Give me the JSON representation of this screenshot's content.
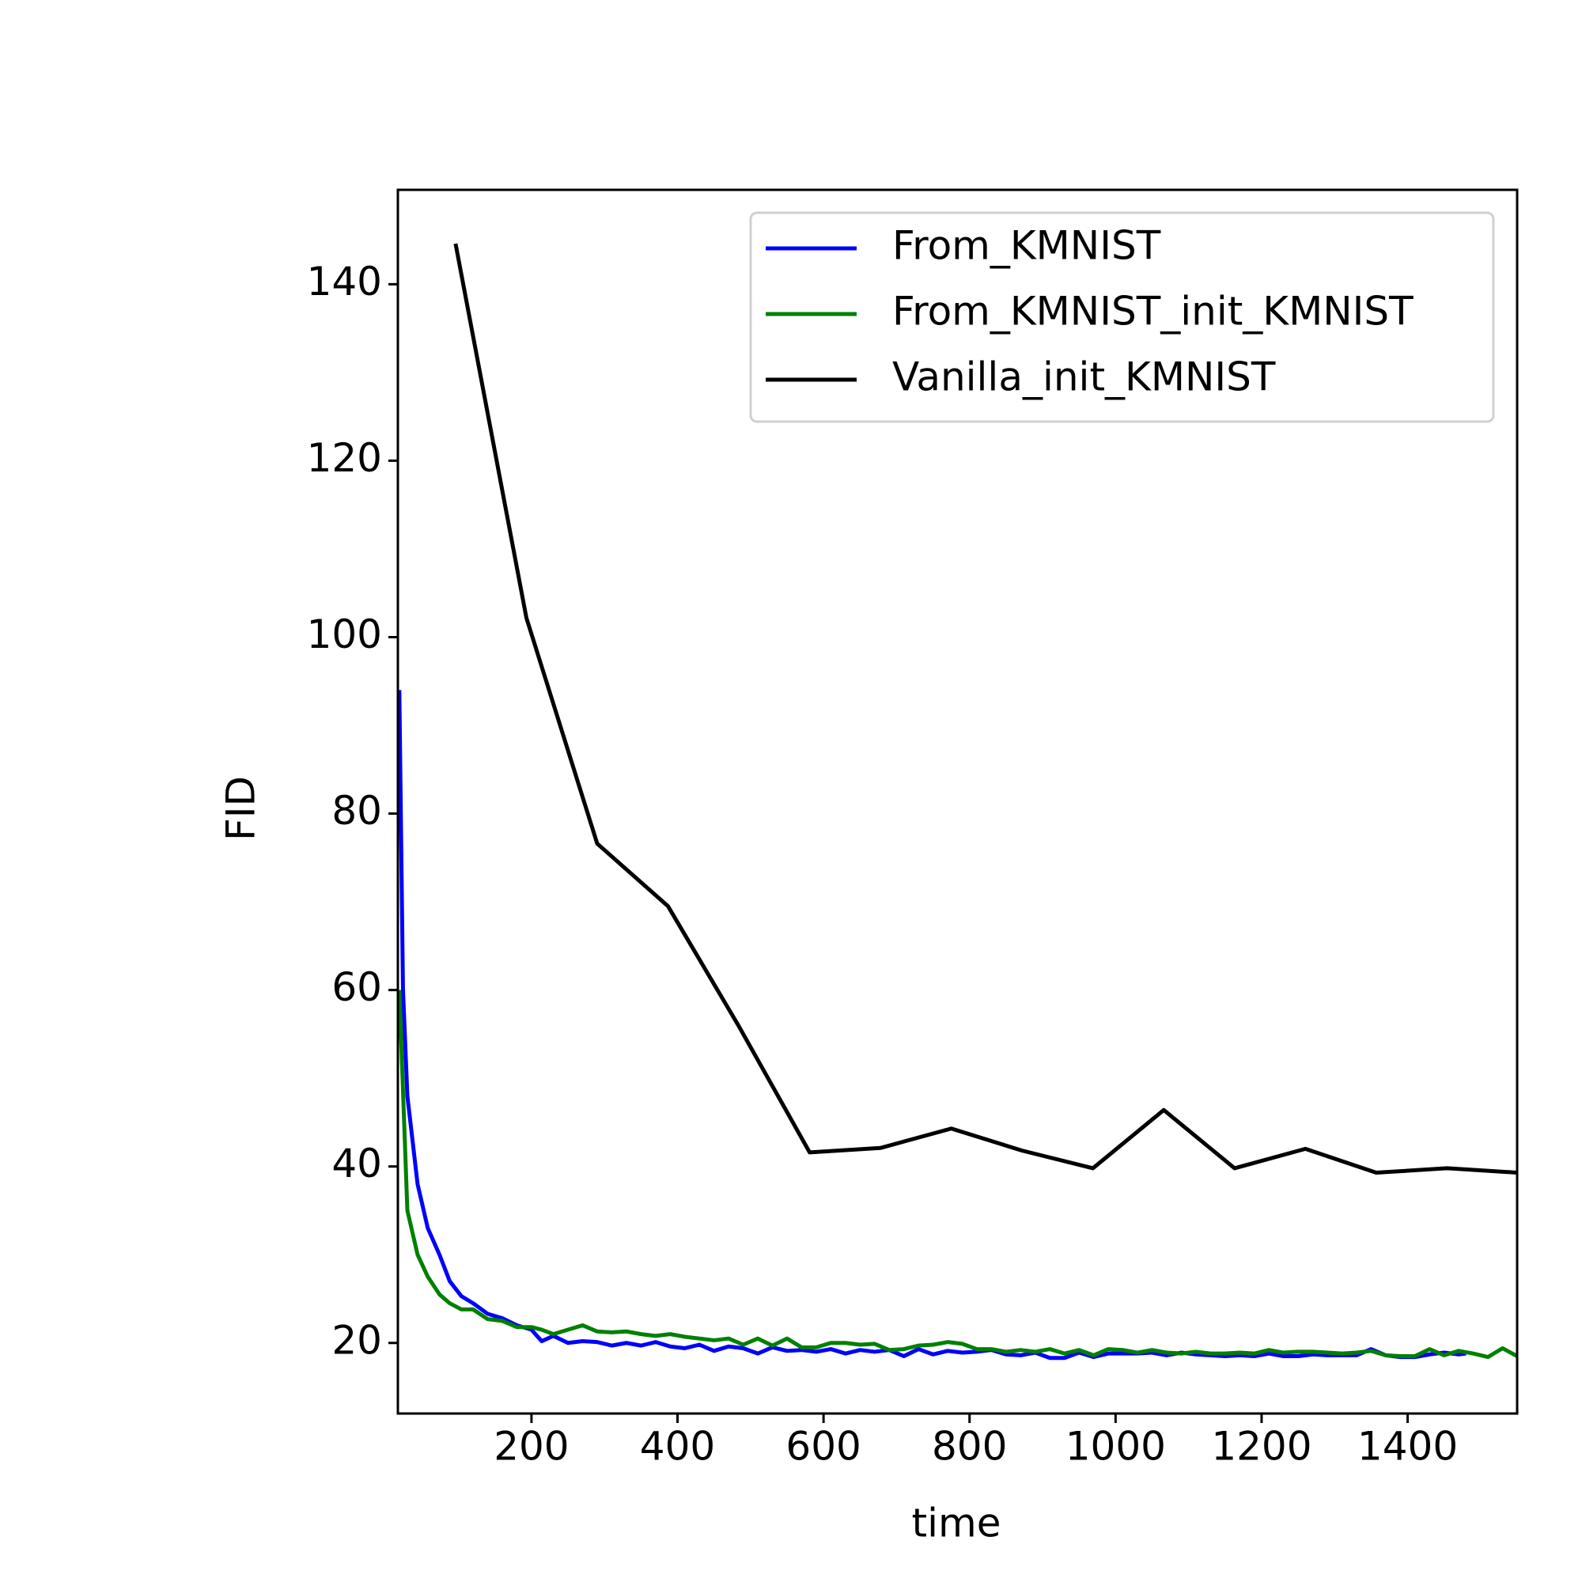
{
  "chart_data": {
    "type": "line",
    "xlabel": "time",
    "ylabel": "FID",
    "xlim": [
      17,
      1550
    ],
    "ylim": [
      12,
      150.7
    ],
    "xticks": [
      200,
      400,
      600,
      800,
      1000,
      1200,
      1400
    ],
    "yticks": [
      20,
      40,
      60,
      80,
      100,
      120,
      140
    ],
    "legend": "upper right",
    "grid": false,
    "series": [
      {
        "name": "From_KMNIST",
        "color": "#0000ff",
        "x": [
          19,
          24,
          30,
          44,
          58,
          74,
          88,
          104,
          120,
          140,
          160,
          180,
          200,
          214,
          230,
          250,
          270,
          290,
          310,
          330,
          350,
          370,
          390,
          410,
          430,
          450,
          470,
          490,
          510,
          530,
          550,
          570,
          590,
          610,
          630,
          650,
          670,
          690,
          710,
          730,
          750,
          770,
          790,
          810,
          830,
          850,
          870,
          890,
          910,
          930,
          950,
          970,
          990,
          1010,
          1030,
          1050,
          1070,
          1090,
          1110,
          1130,
          1150,
          1170,
          1190,
          1210,
          1230,
          1250,
          1270,
          1290,
          1310,
          1330,
          1350,
          1370,
          1390,
          1410,
          1430,
          1450,
          1470,
          1480
        ],
        "values": [
          94,
          60,
          48,
          38,
          33,
          30,
          27,
          25.3,
          24.5,
          23.3,
          22.8,
          22,
          21.5,
          20.2,
          20.8,
          20,
          20.2,
          20.1,
          19.7,
          20,
          19.7,
          20.1,
          19.6,
          19.4,
          19.8,
          19.1,
          19.6,
          19.4,
          18.8,
          19.5,
          19.1,
          19.2,
          19,
          19.3,
          18.8,
          19.2,
          19,
          19.2,
          18.5,
          19.3,
          18.7,
          19.1,
          18.9,
          19,
          19.2,
          18.7,
          18.6,
          18.9,
          18.3,
          18.3,
          18.9,
          18.4,
          18.8,
          18.8,
          18.8,
          18.9,
          18.6,
          18.9,
          18.7,
          18.6,
          18.5,
          18.6,
          18.5,
          18.8,
          18.5,
          18.5,
          18.7,
          18.6,
          18.6,
          18.6,
          19.3,
          18.6,
          18.4,
          18.4,
          18.7,
          18.9,
          18.7,
          18.8
        ]
      },
      {
        "name": "From_KMNIST_init_KMNIST",
        "color": "#008000",
        "x": [
          19,
          30,
          44,
          58,
          74,
          88,
          104,
          120,
          140,
          160,
          180,
          200,
          214,
          230,
          250,
          270,
          290,
          310,
          330,
          350,
          370,
          390,
          410,
          430,
          450,
          470,
          490,
          510,
          530,
          550,
          570,
          590,
          610,
          630,
          650,
          670,
          690,
          710,
          730,
          750,
          770,
          790,
          810,
          830,
          850,
          870,
          890,
          910,
          930,
          950,
          970,
          990,
          1010,
          1030,
          1050,
          1070,
          1090,
          1110,
          1130,
          1150,
          1170,
          1190,
          1210,
          1230,
          1250,
          1270,
          1290,
          1310,
          1330,
          1350,
          1370,
          1390,
          1410,
          1430,
          1450,
          1470,
          1490,
          1510,
          1530,
          1550
        ],
        "values": [
          60,
          35,
          30,
          27.5,
          25.5,
          24.5,
          23.8,
          23.8,
          22.7,
          22.5,
          21.8,
          21.8,
          21.5,
          21,
          21.5,
          22,
          21.3,
          21.2,
          21.3,
          21,
          20.8,
          21,
          20.7,
          20.5,
          20.3,
          20.5,
          19.8,
          20.5,
          19.7,
          20.5,
          19.5,
          19.5,
          20,
          20,
          19.8,
          19.9,
          19.2,
          19.3,
          19.7,
          19.8,
          20.1,
          19.9,
          19.3,
          19.3,
          19,
          19.2,
          19,
          19.3,
          18.8,
          19.2,
          18.6,
          19.3,
          19.2,
          18.9,
          19.2,
          18.9,
          18.8,
          19,
          18.8,
          18.8,
          18.9,
          18.8,
          19.2,
          18.9,
          19,
          19,
          18.9,
          18.8,
          18.9,
          19.1,
          18.6,
          18.5,
          18.5,
          19.3,
          18.6,
          19.1,
          18.8,
          18.4,
          19.4,
          18.5
        ]
      },
      {
        "name": "Vanilla_init_KMNIST",
        "color": "#000000",
        "x": [
          96,
          193,
          290,
          387,
          484,
          581,
          678,
          775,
          872,
          969,
          1066,
          1163,
          1260,
          1357,
          1454,
          1551
        ],
        "values": [
          144.6,
          102.2,
          76.6,
          69.5,
          55.9,
          41.6,
          42.1,
          44.3,
          41.8,
          39.8,
          46.4,
          39.8,
          42,
          39.3,
          39.8,
          39.3
        ]
      }
    ]
  }
}
